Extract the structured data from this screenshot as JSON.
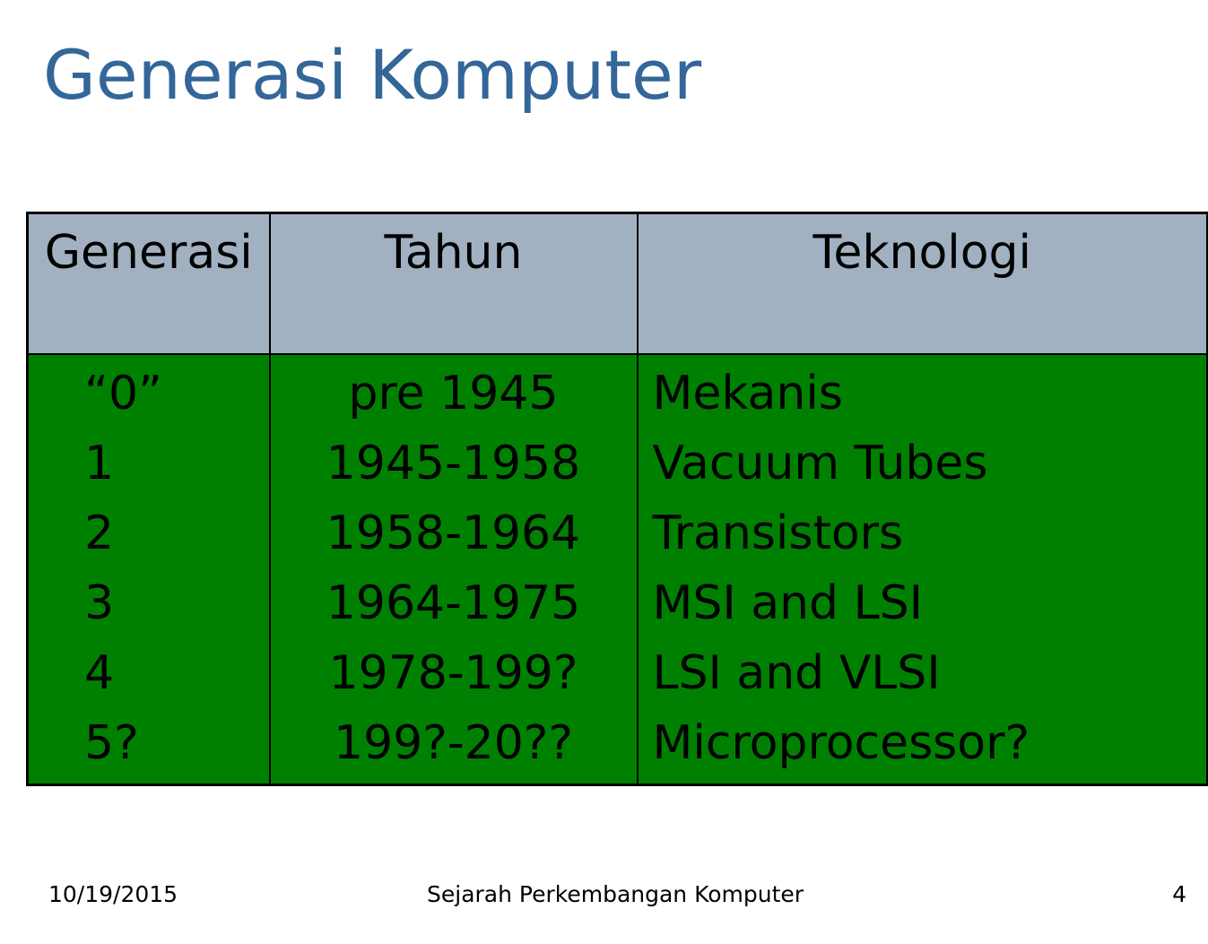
{
  "title": "Generasi Komputer",
  "table": {
    "headers": [
      "Generasi",
      "Tahun",
      "Teknologi"
    ],
    "rows": [
      {
        "generasi": "“0”",
        "tahun": "pre 1945",
        "teknologi": "Mekanis"
      },
      {
        "generasi": "1",
        "tahun": "1945-1958",
        "teknologi": "Vacuum Tubes"
      },
      {
        "generasi": "2",
        "tahun": "1958-1964",
        "teknologi": "Transistors"
      },
      {
        "generasi": "3",
        "tahun": "1964-1975",
        "teknologi": "MSI and LSI"
      },
      {
        "generasi": "4",
        "tahun": "1978-199?",
        "teknologi": "LSI and VLSI"
      },
      {
        "generasi": "5?",
        "tahun": "199?-20??",
        "teknologi": "Microprocessor?"
      }
    ]
  },
  "footer": {
    "date": "10/19/2015",
    "center": "Sejarah Perkembangan Komputer",
    "page": "4"
  },
  "colors": {
    "title": "#336699",
    "header_bg": "#a2b1c2",
    "body_bg": "#008000"
  }
}
